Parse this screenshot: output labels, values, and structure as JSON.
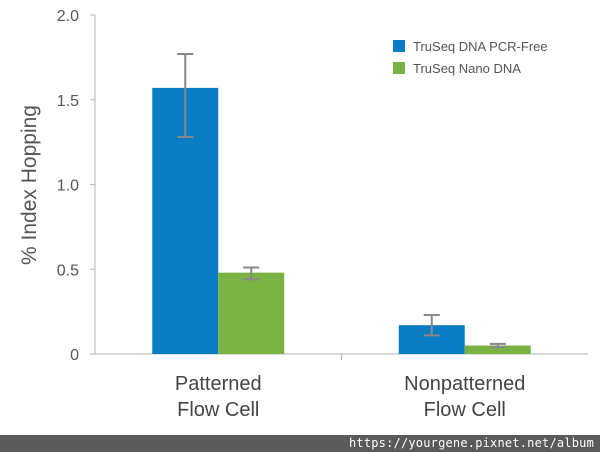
{
  "chart_data": {
    "type": "bar",
    "title": "",
    "ylabel": "% Index Hopping",
    "xlabel": "",
    "ylim": [
      0,
      2.0
    ],
    "yticks": [
      0,
      0.5,
      1.0,
      1.5,
      2.0
    ],
    "ytick_labels": [
      "0",
      "0.5",
      "1.0",
      "1.5",
      "2.0"
    ],
    "categories": [
      [
        "Patterned",
        "Flow Cell"
      ],
      [
        "Nonpatterned",
        "Flow Cell"
      ]
    ],
    "series": [
      {
        "name": "TruSeq DNA PCR-Free",
        "color": "#0a7cc4",
        "values": [
          1.57,
          0.17
        ],
        "error_low": [
          1.28,
          0.11
        ],
        "error_high": [
          1.77,
          0.23
        ]
      },
      {
        "name": "TruSeq Nano DNA",
        "color": "#7ab243",
        "values": [
          0.48,
          0.05
        ],
        "error_low": [
          0.44,
          0.04
        ],
        "error_high": [
          0.51,
          0.06
        ]
      }
    ],
    "grid": false,
    "legend_position": "top-right"
  },
  "watermark": {
    "text": "https://yourgene.pixnet.net/album"
  }
}
